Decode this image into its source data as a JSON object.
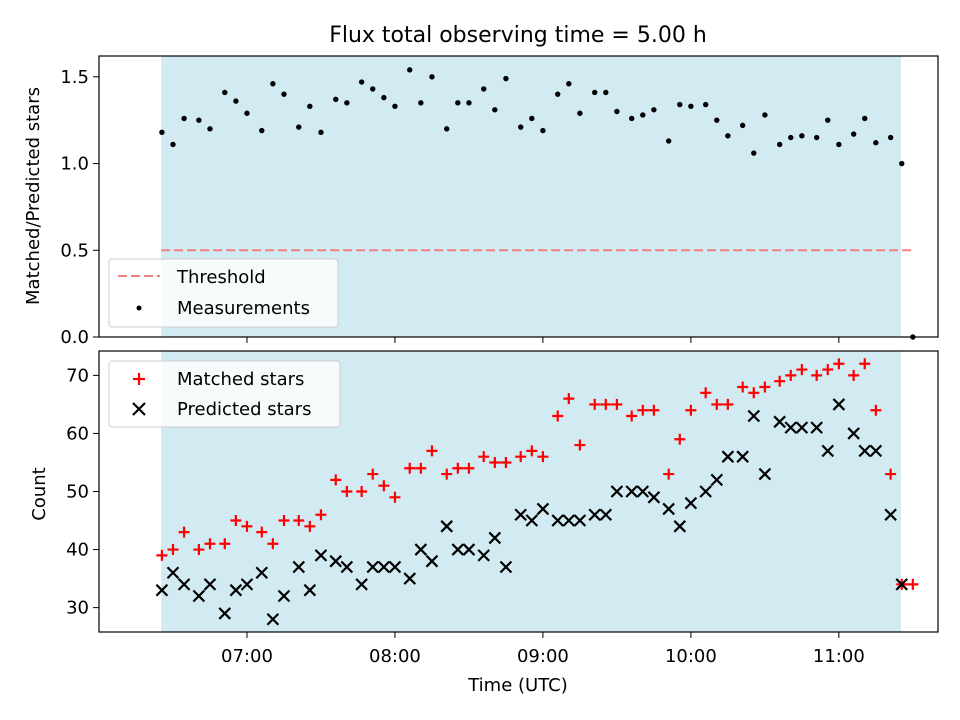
{
  "chart_data": [
    {
      "type": "scatter",
      "title": "Flux total observing time = 5.00 h",
      "xlabel": "",
      "ylabel": "Matched/Predicted stars",
      "ylim": [
        0,
        1.62
      ],
      "yticks": [
        0.0,
        0.5,
        1.0,
        1.5
      ],
      "ytick_labels": [
        "0.0",
        "0.5",
        "1.0",
        "1.5"
      ],
      "x_axis": "time (UTC), hours",
      "xlim": [
        6.0,
        11.67
      ],
      "shaded_interval": [
        6.42,
        11.42
      ],
      "shade_color": "#add8e6",
      "threshold": {
        "name": "Threshold",
        "value": 0.5,
        "x_range": [
          6.42,
          11.5
        ],
        "color": "#f08080",
        "style": "dashed"
      },
      "legend": {
        "location": "lower-left",
        "entries": [
          "Threshold",
          "Measurements"
        ]
      },
      "series": [
        {
          "name": "Measurements",
          "marker": "dot",
          "color": "#000000",
          "x": [
            6.425,
            6.5,
            6.575,
            6.675,
            6.75,
            6.85,
            6.925,
            7.0,
            7.1,
            7.175,
            7.25,
            7.35,
            7.425,
            7.5,
            7.6,
            7.675,
            7.775,
            7.85,
            7.925,
            8.0,
            8.1,
            8.175,
            8.25,
            8.35,
            8.425,
            8.5,
            8.6,
            8.675,
            8.75,
            8.85,
            8.925,
            9.0,
            9.1,
            9.175,
            9.25,
            9.35,
            9.425,
            9.5,
            9.6,
            9.675,
            9.75,
            9.85,
            9.925,
            10.0,
            10.1,
            10.175,
            10.25,
            10.35,
            10.425,
            10.5,
            10.6,
            10.675,
            10.75,
            10.85,
            10.925,
            11.0,
            11.1,
            11.175,
            11.25,
            11.35,
            11.425,
            11.5
          ],
          "y": [
            1.18,
            1.11,
            1.26,
            1.25,
            1.2,
            1.41,
            1.36,
            1.29,
            1.19,
            1.46,
            1.4,
            1.21,
            1.33,
            1.18,
            1.37,
            1.35,
            1.47,
            1.43,
            1.38,
            1.33,
            1.54,
            1.35,
            1.5,
            1.2,
            1.35,
            1.35,
            1.43,
            1.31,
            1.49,
            1.21,
            1.26,
            1.19,
            1.4,
            1.46,
            1.29,
            1.41,
            1.41,
            1.3,
            1.26,
            1.28,
            1.31,
            1.13,
            1.34,
            1.33,
            1.34,
            1.25,
            1.16,
            1.22,
            1.06,
            1.28,
            1.11,
            1.15,
            1.16,
            1.15,
            1.25,
            1.11,
            1.17,
            1.26,
            1.12,
            1.15,
            1.0,
            0.0
          ]
        }
      ]
    },
    {
      "type": "scatter",
      "title": "",
      "xlabel": "Time (UTC)",
      "ylabel": "Count",
      "ylim": [
        25.8,
        74.2
      ],
      "yticks": [
        30,
        40,
        50,
        60,
        70
      ],
      "ytick_labels": [
        "30",
        "40",
        "50",
        "60",
        "70"
      ],
      "x_axis": "time (UTC), hours",
      "xlim": [
        6.0,
        11.67
      ],
      "xticks": [
        7,
        8,
        9,
        10,
        11
      ],
      "xtick_labels": [
        "07:00",
        "08:00",
        "09:00",
        "10:00",
        "11:00"
      ],
      "shaded_interval": [
        6.42,
        11.42
      ],
      "shade_color": "#add8e6",
      "legend": {
        "location": "top-left",
        "entries": [
          "Matched stars",
          "Predicted stars"
        ]
      },
      "series": [
        {
          "name": "Matched stars",
          "marker": "plus",
          "color": "#ff0000",
          "x": [
            6.425,
            6.5,
            6.575,
            6.675,
            6.75,
            6.85,
            6.925,
            7.0,
            7.1,
            7.175,
            7.25,
            7.35,
            7.425,
            7.5,
            7.6,
            7.675,
            7.775,
            7.85,
            7.925,
            8.0,
            8.1,
            8.175,
            8.25,
            8.35,
            8.425,
            8.5,
            8.6,
            8.675,
            8.75,
            8.85,
            8.925,
            9.0,
            9.1,
            9.175,
            9.25,
            9.35,
            9.425,
            9.5,
            9.6,
            9.675,
            9.75,
            9.85,
            9.925,
            10.0,
            10.1,
            10.175,
            10.25,
            10.35,
            10.425,
            10.5,
            10.6,
            10.675,
            10.75,
            10.85,
            10.925,
            11.0,
            11.1,
            11.175,
            11.25,
            11.35,
            11.425,
            11.5
          ],
          "y": [
            39,
            40,
            43,
            40,
            41,
            41,
            45,
            44,
            43,
            41,
            45,
            45,
            44,
            46,
            52,
            50,
            50,
            53,
            51,
            49,
            54,
            54,
            57,
            53,
            54,
            54,
            56,
            55,
            55,
            56,
            57,
            56,
            63,
            66,
            58,
            65,
            65,
            65,
            63,
            64,
            64,
            53,
            59,
            64,
            67,
            65,
            65,
            68,
            67,
            68,
            69,
            70,
            71,
            70,
            71,
            72,
            70,
            72,
            64,
            53,
            34,
            34
          ]
        },
        {
          "name": "Predicted stars",
          "marker": "x",
          "color": "#000000",
          "x": [
            6.425,
            6.5,
            6.575,
            6.675,
            6.75,
            6.85,
            6.925,
            7.0,
            7.1,
            7.175,
            7.25,
            7.35,
            7.425,
            7.5,
            7.6,
            7.675,
            7.775,
            7.85,
            7.925,
            8.0,
            8.1,
            8.175,
            8.25,
            8.35,
            8.425,
            8.5,
            8.6,
            8.675,
            8.75,
            8.85,
            8.925,
            9.0,
            9.1,
            9.175,
            9.25,
            9.35,
            9.425,
            9.5,
            9.6,
            9.675,
            9.75,
            9.85,
            9.925,
            10.0,
            10.1,
            10.175,
            10.25,
            10.35,
            10.425,
            10.5,
            10.6,
            10.675,
            10.75,
            10.85,
            10.925,
            11.0,
            11.1,
            11.175,
            11.25,
            11.35,
            11.425
          ],
          "y": [
            33,
            36,
            34,
            32,
            34,
            29,
            33,
            34,
            36,
            28,
            32,
            37,
            33,
            39,
            38,
            37,
            34,
            37,
            37,
            37,
            35,
            40,
            38,
            44,
            40,
            40,
            39,
            42,
            37,
            46,
            45,
            47,
            45,
            45,
            45,
            46,
            46,
            50,
            50,
            50,
            49,
            47,
            44,
            48,
            50,
            52,
            56,
            56,
            63,
            53,
            62,
            61,
            61,
            61,
            57,
            65,
            60,
            57,
            57,
            46,
            34
          ]
        }
      ]
    }
  ]
}
